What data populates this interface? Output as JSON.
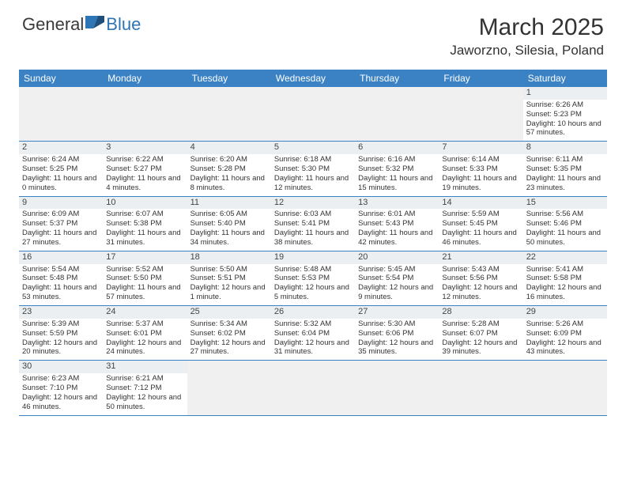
{
  "logo": {
    "text1": "General",
    "text2": "Blue"
  },
  "title": "March 2025",
  "location": "Jaworzno, Silesia, Poland",
  "colors": {
    "header_bg": "#3b82c4",
    "header_text": "#ffffff",
    "daynum_bg": "#eceff1",
    "row_border": "#3b82c4",
    "logo_blue": "#2e75b6",
    "text": "#333333"
  },
  "weekdays": [
    "Sunday",
    "Monday",
    "Tuesday",
    "Wednesday",
    "Thursday",
    "Friday",
    "Saturday"
  ],
  "weeks": [
    [
      null,
      null,
      null,
      null,
      null,
      null,
      {
        "n": "1",
        "sr": "Sunrise: 6:26 AM",
        "ss": "Sunset: 5:23 PM",
        "dl": "Daylight: 10 hours and 57 minutes."
      }
    ],
    [
      {
        "n": "2",
        "sr": "Sunrise: 6:24 AM",
        "ss": "Sunset: 5:25 PM",
        "dl": "Daylight: 11 hours and 0 minutes."
      },
      {
        "n": "3",
        "sr": "Sunrise: 6:22 AM",
        "ss": "Sunset: 5:27 PM",
        "dl": "Daylight: 11 hours and 4 minutes."
      },
      {
        "n": "4",
        "sr": "Sunrise: 6:20 AM",
        "ss": "Sunset: 5:28 PM",
        "dl": "Daylight: 11 hours and 8 minutes."
      },
      {
        "n": "5",
        "sr": "Sunrise: 6:18 AM",
        "ss": "Sunset: 5:30 PM",
        "dl": "Daylight: 11 hours and 12 minutes."
      },
      {
        "n": "6",
        "sr": "Sunrise: 6:16 AM",
        "ss": "Sunset: 5:32 PM",
        "dl": "Daylight: 11 hours and 15 minutes."
      },
      {
        "n": "7",
        "sr": "Sunrise: 6:14 AM",
        "ss": "Sunset: 5:33 PM",
        "dl": "Daylight: 11 hours and 19 minutes."
      },
      {
        "n": "8",
        "sr": "Sunrise: 6:11 AM",
        "ss": "Sunset: 5:35 PM",
        "dl": "Daylight: 11 hours and 23 minutes."
      }
    ],
    [
      {
        "n": "9",
        "sr": "Sunrise: 6:09 AM",
        "ss": "Sunset: 5:37 PM",
        "dl": "Daylight: 11 hours and 27 minutes."
      },
      {
        "n": "10",
        "sr": "Sunrise: 6:07 AM",
        "ss": "Sunset: 5:38 PM",
        "dl": "Daylight: 11 hours and 31 minutes."
      },
      {
        "n": "11",
        "sr": "Sunrise: 6:05 AM",
        "ss": "Sunset: 5:40 PM",
        "dl": "Daylight: 11 hours and 34 minutes."
      },
      {
        "n": "12",
        "sr": "Sunrise: 6:03 AM",
        "ss": "Sunset: 5:41 PM",
        "dl": "Daylight: 11 hours and 38 minutes."
      },
      {
        "n": "13",
        "sr": "Sunrise: 6:01 AM",
        "ss": "Sunset: 5:43 PM",
        "dl": "Daylight: 11 hours and 42 minutes."
      },
      {
        "n": "14",
        "sr": "Sunrise: 5:59 AM",
        "ss": "Sunset: 5:45 PM",
        "dl": "Daylight: 11 hours and 46 minutes."
      },
      {
        "n": "15",
        "sr": "Sunrise: 5:56 AM",
        "ss": "Sunset: 5:46 PM",
        "dl": "Daylight: 11 hours and 50 minutes."
      }
    ],
    [
      {
        "n": "16",
        "sr": "Sunrise: 5:54 AM",
        "ss": "Sunset: 5:48 PM",
        "dl": "Daylight: 11 hours and 53 minutes."
      },
      {
        "n": "17",
        "sr": "Sunrise: 5:52 AM",
        "ss": "Sunset: 5:50 PM",
        "dl": "Daylight: 11 hours and 57 minutes."
      },
      {
        "n": "18",
        "sr": "Sunrise: 5:50 AM",
        "ss": "Sunset: 5:51 PM",
        "dl": "Daylight: 12 hours and 1 minute."
      },
      {
        "n": "19",
        "sr": "Sunrise: 5:48 AM",
        "ss": "Sunset: 5:53 PM",
        "dl": "Daylight: 12 hours and 5 minutes."
      },
      {
        "n": "20",
        "sr": "Sunrise: 5:45 AM",
        "ss": "Sunset: 5:54 PM",
        "dl": "Daylight: 12 hours and 9 minutes."
      },
      {
        "n": "21",
        "sr": "Sunrise: 5:43 AM",
        "ss": "Sunset: 5:56 PM",
        "dl": "Daylight: 12 hours and 12 minutes."
      },
      {
        "n": "22",
        "sr": "Sunrise: 5:41 AM",
        "ss": "Sunset: 5:58 PM",
        "dl": "Daylight: 12 hours and 16 minutes."
      }
    ],
    [
      {
        "n": "23",
        "sr": "Sunrise: 5:39 AM",
        "ss": "Sunset: 5:59 PM",
        "dl": "Daylight: 12 hours and 20 minutes."
      },
      {
        "n": "24",
        "sr": "Sunrise: 5:37 AM",
        "ss": "Sunset: 6:01 PM",
        "dl": "Daylight: 12 hours and 24 minutes."
      },
      {
        "n": "25",
        "sr": "Sunrise: 5:34 AM",
        "ss": "Sunset: 6:02 PM",
        "dl": "Daylight: 12 hours and 27 minutes."
      },
      {
        "n": "26",
        "sr": "Sunrise: 5:32 AM",
        "ss": "Sunset: 6:04 PM",
        "dl": "Daylight: 12 hours and 31 minutes."
      },
      {
        "n": "27",
        "sr": "Sunrise: 5:30 AM",
        "ss": "Sunset: 6:06 PM",
        "dl": "Daylight: 12 hours and 35 minutes."
      },
      {
        "n": "28",
        "sr": "Sunrise: 5:28 AM",
        "ss": "Sunset: 6:07 PM",
        "dl": "Daylight: 12 hours and 39 minutes."
      },
      {
        "n": "29",
        "sr": "Sunrise: 5:26 AM",
        "ss": "Sunset: 6:09 PM",
        "dl": "Daylight: 12 hours and 43 minutes."
      }
    ],
    [
      {
        "n": "30",
        "sr": "Sunrise: 6:23 AM",
        "ss": "Sunset: 7:10 PM",
        "dl": "Daylight: 12 hours and 46 minutes."
      },
      {
        "n": "31",
        "sr": "Sunrise: 6:21 AM",
        "ss": "Sunset: 7:12 PM",
        "dl": "Daylight: 12 hours and 50 minutes."
      },
      null,
      null,
      null,
      null,
      null
    ]
  ]
}
